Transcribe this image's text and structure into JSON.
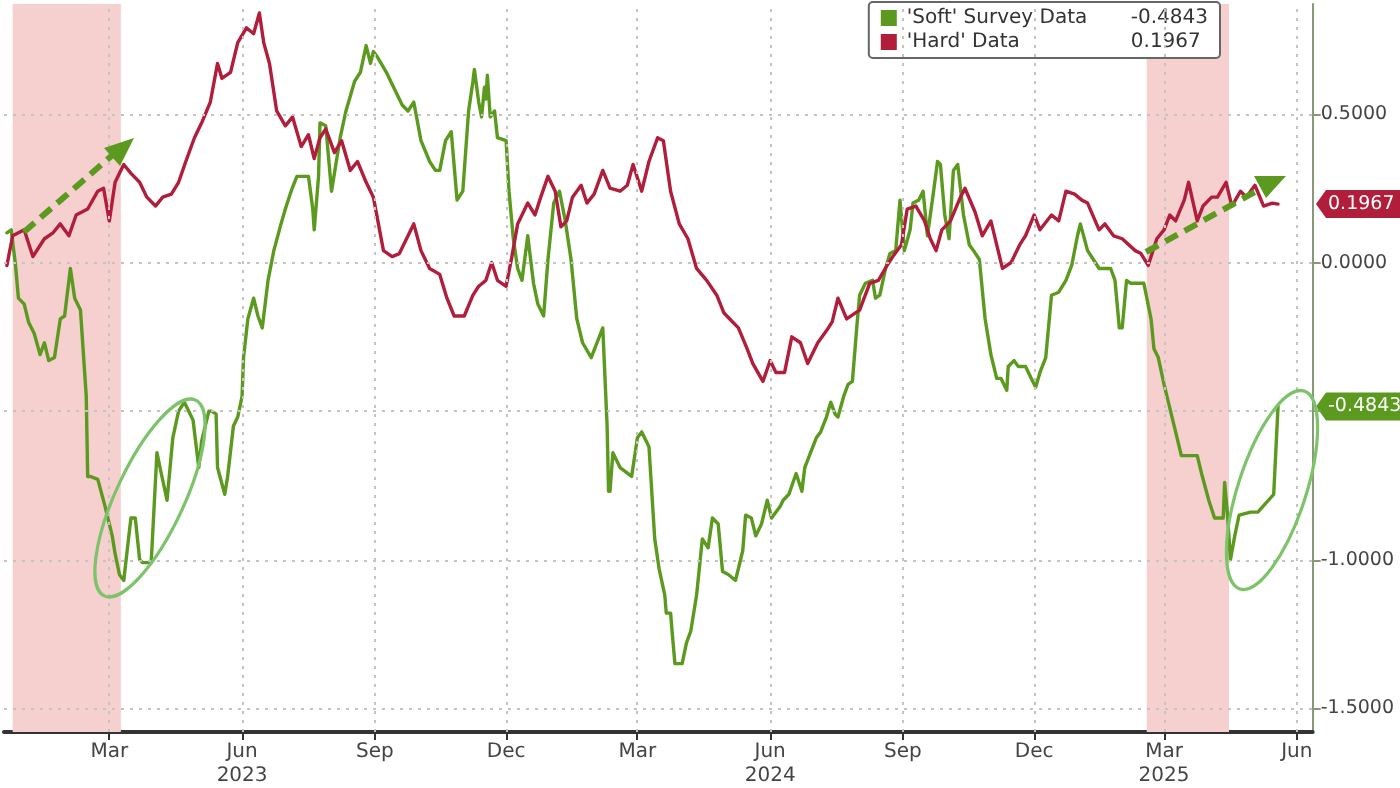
{
  "chart_data": {
    "type": "line",
    "xlim": [
      "2023-01-01",
      "2025-06-26"
    ],
    "ylim": [
      -1.58,
      0.87
    ],
    "xticks": [
      {
        "value": "2023-03-15",
        "label": "Mar"
      },
      {
        "value": "2023-06-15",
        "label": "Jun\n2023"
      },
      {
        "value": "2023-09-15",
        "label": "Sep"
      },
      {
        "value": "2023-12-15",
        "label": "Dec"
      },
      {
        "value": "2024-03-15",
        "label": "Mar"
      },
      {
        "value": "2024-06-15",
        "label": "Jun\n2024"
      },
      {
        "value": "2024-09-15",
        "label": "Sep"
      },
      {
        "value": "2024-12-15",
        "label": "Dec"
      },
      {
        "value": "2025-03-15",
        "label": "Mar\n2025"
      },
      {
        "value": "2025-06-15",
        "label": "Jun"
      }
    ],
    "yticks": [
      {
        "value": 0.5,
        "label": "0.5000"
      },
      {
        "value": 0,
        "label": "0.0000"
      },
      {
        "value": -0.5,
        "label": null
      },
      {
        "value": -1,
        "label": "-1.0000"
      },
      {
        "value": -1.5,
        "label": "-1.5000"
      }
    ],
    "grid": true,
    "legend": "top right",
    "line_style": "solid",
    "series": [
      {
        "name": "'Soft' Survey Data",
        "color": "#5b9a1f",
        "x": [
          "2023-01-03",
          "2023-01-06",
          "2023-01-09",
          "2023-01-11",
          "2023-01-15",
          "2023-01-18",
          "2023-01-22",
          "2023-01-26",
          "2023-01-29",
          "2023-02-01",
          "2023-02-05",
          "2023-02-09",
          "2023-02-12",
          "2023-02-16",
          "2023-02-19",
          "2023-02-23",
          "2023-02-27",
          "2023-02-28",
          "2023-03-02",
          "2023-03-07",
          "2023-03-12",
          "2023-03-17",
          "2023-03-19",
          "2023-03-22",
          "2023-03-25",
          "2023-03-29",
          "2023-03-30",
          "2023-04-02",
          "2023-04-05",
          "2023-04-07",
          "2023-04-13",
          "2023-04-17",
          "2023-04-20",
          "2023-04-24",
          "2023-04-28",
          "2023-05-02",
          "2023-05-06",
          "2023-05-12",
          "2023-05-16",
          "2023-05-18",
          "2023-05-23",
          "2023-05-25",
          "2023-05-28",
          "2023-05-29",
          "2023-06-03",
          "2023-06-05",
          "2023-06-09",
          "2023-06-12",
          "2023-06-15",
          "2023-06-16",
          "2023-06-19",
          "2023-06-23",
          "2023-06-26",
          "2023-06-29",
          "2023-07-03",
          "2023-07-07",
          "2023-07-12",
          "2023-07-15",
          "2023-07-19",
          "2023-07-23",
          "2023-07-27",
          "2023-07-31",
          "2023-08-03",
          "2023-08-04",
          "2023-08-07",
          "2023-08-08",
          "2023-08-12",
          "2023-08-16",
          "2023-08-22",
          "2023-08-26",
          "2023-09-01",
          "2023-09-05",
          "2023-09-09",
          "2023-09-12",
          "2023-09-14",
          "2023-09-17",
          "2023-09-23",
          "2023-09-28",
          "2023-10-04",
          "2023-10-08",
          "2023-10-12",
          "2023-10-17",
          "2023-10-23",
          "2023-10-27",
          "2023-10-30",
          "2023-11-03",
          "2023-11-07",
          "2023-11-11",
          "2023-11-15",
          "2023-11-19",
          "2023-11-22",
          "2023-11-23",
          "2023-11-26",
          "2023-11-28",
          "2023-11-30",
          "2023-12-01",
          "2023-12-02",
          "2023-12-04",
          "2023-12-07",
          "2023-12-09",
          "2023-12-15",
          "2023-12-17",
          "2023-12-20",
          "2023-12-23",
          "2023-12-26",
          "2023-12-30",
          "2024-01-03",
          "2024-01-06",
          "2024-01-10",
          "2024-01-13",
          "2024-01-17",
          "2024-01-21",
          "2024-01-25",
          "2024-01-29",
          "2024-02-02",
          "2024-02-06",
          "2024-02-12",
          "2024-02-16",
          "2024-02-20",
          "2024-02-23",
          "2024-02-24",
          "2024-02-25",
          "2024-02-27",
          "2024-03-03",
          "2024-03-11",
          "2024-03-15",
          "2024-03-18",
          "2024-03-23",
          "2024-03-27",
          "2024-03-30",
          "2024-04-03",
          "2024-04-04",
          "2024-04-07",
          "2024-04-08",
          "2024-04-10",
          "2024-04-13",
          "2024-04-15",
          "2024-04-18",
          "2024-04-21",
          "2024-04-25",
          "2024-04-29",
          "2024-05-03",
          "2024-05-06",
          "2024-05-10",
          "2024-05-13",
          "2024-05-17",
          "2024-05-22",
          "2024-05-27",
          "2024-05-29",
          "2024-06-02",
          "2024-06-05",
          "2024-06-09",
          "2024-06-13",
          "2024-06-16",
          "2024-06-22",
          "2024-06-24",
          "2024-06-28",
          "2024-07-03",
          "2024-07-07",
          "2024-07-09",
          "2024-07-13",
          "2024-07-17",
          "2024-07-20",
          "2024-07-24",
          "2024-07-27",
          "2024-07-30",
          "2024-08-01",
          "2024-08-05",
          "2024-08-08",
          "2024-08-11",
          "2024-08-14",
          "2024-08-16",
          "2024-08-20",
          "2024-08-25",
          "2024-08-27",
          "2024-08-30",
          "2024-09-03",
          "2024-09-06",
          "2024-09-10",
          "2024-09-13",
          "2024-09-16",
          "2024-09-20",
          "2024-09-22",
          "2024-09-26",
          "2024-09-29",
          "2024-10-02",
          "2024-10-06",
          "2024-10-09",
          "2024-10-11",
          "2024-10-14",
          "2024-10-17",
          "2024-10-20",
          "2024-10-23",
          "2024-10-27",
          "2024-10-31",
          "2024-11-03",
          "2024-11-07",
          "2024-11-11",
          "2024-11-15",
          "2024-11-19",
          "2024-11-22",
          "2024-11-26",
          "2024-11-27",
          "2024-12-01",
          "2024-12-04",
          "2024-12-09",
          "2024-12-13",
          "2024-12-16",
          "2024-12-19",
          "2024-12-23",
          "2024-12-27",
          "2025-01-01",
          "2025-01-06",
          "2025-01-10",
          "2025-01-14",
          "2025-01-16",
          "2025-01-21",
          "2025-01-25",
          "2025-01-29",
          "2025-02-02",
          "2025-02-06",
          "2025-02-09",
          "2025-02-12",
          "2025-02-14",
          "2025-02-17",
          "2025-02-20",
          "2025-02-27",
          "2025-03-01",
          "2025-03-06",
          "2025-03-08",
          "2025-03-11",
          "2025-03-15",
          "2025-03-22",
          "2025-03-27",
          "2025-03-31",
          "2025-04-07",
          "2025-04-10",
          "2025-04-15",
          "2025-04-19",
          "2025-04-25",
          "2025-04-26",
          "2025-04-28",
          "2025-04-30",
          "2025-05-03",
          "2025-05-06",
          "2025-05-14",
          "2025-05-19",
          "2025-05-30",
          "2025-06-02"
        ],
        "values": [
          0.1,
          0.11,
          -0.01,
          -0.12,
          -0.14,
          -0.2,
          -0.24,
          -0.31,
          -0.27,
          -0.33,
          -0.32,
          -0.19,
          -0.18,
          -0.02,
          -0.12,
          -0.16,
          -0.45,
          -0.72,
          -0.72,
          -0.73,
          -0.82,
          -0.92,
          -0.98,
          -1.05,
          -1.07,
          -0.9,
          -0.86,
          -0.86,
          -1.0,
          -1.01,
          -1.01,
          -0.64,
          -0.71,
          -0.8,
          -0.59,
          -0.5,
          -0.47,
          -0.53,
          -0.69,
          -0.6,
          -0.5,
          -0.5,
          -0.51,
          -0.69,
          -0.78,
          -0.72,
          -0.55,
          -0.52,
          -0.45,
          -0.32,
          -0.19,
          -0.12,
          -0.18,
          -0.22,
          -0.06,
          0.04,
          0.13,
          0.18,
          0.24,
          0.29,
          0.29,
          0.29,
          0.18,
          0.11,
          0.29,
          0.47,
          0.46,
          0.24,
          0.42,
          0.51,
          0.61,
          0.64,
          0.73,
          0.67,
          0.71,
          0.69,
          0.64,
          0.59,
          0.53,
          0.51,
          0.54,
          0.41,
          0.34,
          0.31,
          0.31,
          0.41,
          0.44,
          0.21,
          0.24,
          0.51,
          0.61,
          0.65,
          0.54,
          0.49,
          0.59,
          0.55,
          0.63,
          0.49,
          0.51,
          0.42,
          0.41,
          0.24,
          0.08,
          -0.02,
          -0.06,
          0.09,
          -0.07,
          -0.14,
          -0.18,
          0.01,
          0.2,
          0.24,
          0.14,
          0.01,
          -0.19,
          -0.27,
          -0.32,
          -0.27,
          -0.22,
          -0.55,
          -0.77,
          -0.77,
          -0.64,
          -0.69,
          -0.72,
          -0.59,
          -0.57,
          -0.62,
          -0.93,
          -1.03,
          -1.12,
          -1.18,
          -1.18,
          -1.24,
          -1.35,
          -1.35,
          -1.35,
          -1.28,
          -1.24,
          -1.12,
          -0.93,
          -0.96,
          -0.86,
          -0.88,
          -1.04,
          -1.05,
          -1.07,
          -0.97,
          -0.85,
          -0.86,
          -0.92,
          -0.88,
          -0.8,
          -0.86,
          -0.82,
          -0.8,
          -0.78,
          -0.71,
          -0.77,
          -0.69,
          -0.64,
          -0.59,
          -0.57,
          -0.52,
          -0.47,
          -0.51,
          -0.52,
          -0.45,
          -0.41,
          -0.4,
          -0.22,
          -0.11,
          -0.07,
          -0.06,
          -0.12,
          -0.11,
          -0.02,
          0.03,
          0.04,
          0.21,
          0.04,
          0.11,
          0.2,
          0.21,
          0.24,
          0.09,
          0.23,
          0.34,
          0.33,
          0.16,
          0.08,
          0.31,
          0.33,
          0.16,
          0.06,
          0.04,
          0.01,
          -0.19,
          -0.31,
          -0.39,
          -0.39,
          -0.43,
          -0.35,
          -0.33,
          -0.35,
          -0.35,
          -0.39,
          -0.42,
          -0.37,
          -0.32,
          -0.11,
          -0.1,
          -0.06,
          -0.01,
          0.09,
          0.13,
          0.04,
          0.01,
          -0.02,
          -0.02,
          -0.02,
          -0.06,
          -0.22,
          -0.22,
          -0.06,
          -0.07,
          -0.07,
          -0.07,
          -0.19,
          -0.29,
          -0.32,
          -0.41,
          -0.55,
          -0.65,
          -0.65,
          -0.65,
          -0.71,
          -0.8,
          -0.86,
          -0.86,
          -0.74,
          -0.85,
          -1.0,
          -0.92,
          -0.85,
          -0.84,
          -0.84,
          -0.78,
          -0.4843
        ]
      },
      {
        "name": "'Hard' Data",
        "color": "#b01e3c",
        "x": [
          "2023-01-03",
          "2023-01-07",
          "2023-01-15",
          "2023-01-21",
          "2023-01-29",
          "2023-02-04",
          "2023-02-09",
          "2023-02-15",
          "2023-02-20",
          "2023-02-28",
          "2023-03-07",
          "2023-03-11",
          "2023-03-15",
          "2023-03-19",
          "2023-03-25",
          "2023-03-30",
          "2023-04-05",
          "2023-04-10",
          "2023-04-16",
          "2023-04-21",
          "2023-04-27",
          "2023-05-02",
          "2023-05-07",
          "2023-05-13",
          "2023-05-18",
          "2023-05-24",
          "2023-05-29",
          "2023-06-01",
          "2023-06-07",
          "2023-06-12",
          "2023-06-18",
          "2023-06-23",
          "2023-06-27",
          "2023-06-30",
          "2023-07-04",
          "2023-07-09",
          "2023-07-15",
          "2023-07-20",
          "2023-07-26",
          "2023-07-31",
          "2023-08-04",
          "2023-08-08",
          "2023-08-12",
          "2023-08-18",
          "2023-08-23",
          "2023-08-29",
          "2023-09-03",
          "2023-09-09",
          "2023-09-14",
          "2023-09-21",
          "2023-09-27",
          "2023-10-02",
          "2023-10-08",
          "2023-10-12",
          "2023-10-17",
          "2023-10-23",
          "2023-10-30",
          "2023-11-04",
          "2023-11-09",
          "2023-11-16",
          "2023-11-22",
          "2023-11-26",
          "2023-12-01",
          "2023-12-05",
          "2023-12-09",
          "2023-12-15",
          "2023-12-19",
          "2023-12-23",
          "2023-12-30",
          "2024-01-04",
          "2024-01-08",
          "2024-01-13",
          "2024-01-18",
          "2024-01-22",
          "2024-01-26",
          "2024-01-30",
          "2024-02-05",
          "2024-02-09",
          "2024-02-14",
          "2024-02-20",
          "2024-02-25",
          "2024-03-03",
          "2024-03-08",
          "2024-03-12",
          "2024-03-18",
          "2024-03-23",
          "2024-03-29",
          "2024-04-02",
          "2024-04-07",
          "2024-04-13",
          "2024-04-19",
          "2024-04-25",
          "2024-05-02",
          "2024-05-09",
          "2024-05-14",
          "2024-05-20",
          "2024-05-24",
          "2024-05-30",
          "2024-06-03",
          "2024-06-10",
          "2024-06-15",
          "2024-06-19",
          "2024-06-25",
          "2024-06-30",
          "2024-07-06",
          "2024-07-11",
          "2024-07-18",
          "2024-07-24",
          "2024-07-28",
          "2024-08-01",
          "2024-08-07",
          "2024-08-16",
          "2024-08-23",
          "2024-08-29",
          "2024-09-04",
          "2024-09-08",
          "2024-09-14",
          "2024-09-18",
          "2024-09-24",
          "2024-09-30",
          "2024-10-04",
          "2024-10-08",
          "2024-10-12",
          "2024-10-18",
          "2024-10-24",
          "2024-10-28",
          "2024-11-04",
          "2024-11-09",
          "2024-11-15",
          "2024-11-20",
          "2024-11-23",
          "2024-11-29",
          "2024-12-05",
          "2024-12-09",
          "2024-12-15",
          "2024-12-19",
          "2024-12-27",
          "2025-01-01",
          "2025-01-06",
          "2025-01-12",
          "2025-01-17",
          "2025-01-21",
          "2025-01-29",
          "2025-02-02",
          "2025-02-08",
          "2025-02-14",
          "2025-02-23",
          "2025-02-27",
          "2025-03-04",
          "2025-03-10",
          "2025-03-15",
          "2025-03-19",
          "2025-03-23",
          "2025-03-29",
          "2025-04-01",
          "2025-04-07",
          "2025-04-11",
          "2025-04-17",
          "2025-04-21",
          "2025-04-27",
          "2025-05-01",
          "2025-05-07",
          "2025-05-11",
          "2025-05-17",
          "2025-05-23",
          "2025-05-29",
          "2025-06-02"
        ],
        "values": [
          -0.01,
          0.09,
          0.11,
          0.02,
          0.08,
          0.1,
          0.13,
          0.09,
          0.16,
          0.18,
          0.24,
          0.25,
          0.14,
          0.27,
          0.33,
          0.3,
          0.27,
          0.22,
          0.19,
          0.22,
          0.23,
          0.27,
          0.34,
          0.42,
          0.47,
          0.54,
          0.67,
          0.62,
          0.64,
          0.74,
          0.79,
          0.77,
          0.84,
          0.74,
          0.67,
          0.51,
          0.46,
          0.49,
          0.39,
          0.43,
          0.35,
          0.42,
          0.45,
          0.37,
          0.41,
          0.31,
          0.34,
          0.27,
          0.22,
          0.04,
          0.02,
          0.03,
          0.09,
          0.13,
          0.04,
          -0.02,
          -0.04,
          -0.12,
          -0.18,
          -0.18,
          -0.11,
          -0.08,
          -0.06,
          0.0,
          -0.06,
          -0.08,
          0.02,
          0.13,
          0.2,
          0.16,
          0.22,
          0.29,
          0.24,
          0.12,
          0.14,
          0.22,
          0.26,
          0.2,
          0.23,
          0.31,
          0.25,
          0.24,
          0.26,
          0.33,
          0.24,
          0.34,
          0.42,
          0.41,
          0.24,
          0.13,
          0.08,
          -0.02,
          -0.06,
          -0.11,
          -0.17,
          -0.2,
          -0.22,
          -0.29,
          -0.34,
          -0.4,
          -0.33,
          -0.37,
          -0.37,
          -0.25,
          -0.27,
          -0.34,
          -0.27,
          -0.23,
          -0.2,
          -0.12,
          -0.19,
          -0.16,
          -0.07,
          -0.06,
          -0.01,
          0.02,
          0.06,
          0.18,
          0.19,
          0.14,
          0.08,
          0.04,
          0.11,
          0.14,
          0.21,
          0.25,
          0.17,
          0.09,
          0.14,
          0.04,
          -0.02,
          0.0,
          0.06,
          0.09,
          0.16,
          0.11,
          0.16,
          0.14,
          0.24,
          0.23,
          0.21,
          0.2,
          0.11,
          0.13,
          0.09,
          0.08,
          0.04,
          0.03,
          -0.01,
          0.08,
          0.11,
          0.16,
          0.14,
          0.21,
          0.27,
          0.14,
          0.19,
          0.22,
          0.22,
          0.27,
          0.19,
          0.24,
          0.22,
          0.26,
          0.19,
          0.2,
          0.1967
        ]
      }
    ],
    "bands": [
      {
        "axis": "x",
        "from": "2023-01-07",
        "to": "2023-03-23",
        "color": "#f6cfcf"
      },
      {
        "axis": "x",
        "from": "2025-03-03",
        "to": "2025-04-29",
        "color": "#f6cfcf"
      }
    ],
    "annotations": [
      "-0.4843",
      "0.1967"
    ]
  }
}
